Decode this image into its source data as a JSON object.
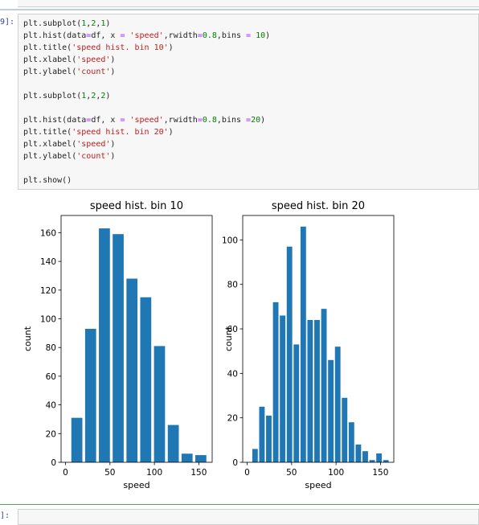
{
  "cell": {
    "prompt": "9]:",
    "next_prompt": "]:"
  },
  "code": [
    [
      {
        "t": "plt.subplot(",
        "c": ""
      },
      {
        "t": "1",
        "c": "num"
      },
      {
        "t": ",",
        "c": ""
      },
      {
        "t": "2",
        "c": "num"
      },
      {
        "t": ",",
        "c": ""
      },
      {
        "t": "1",
        "c": "num"
      },
      {
        "t": ")",
        "c": ""
      }
    ],
    [
      {
        "t": "plt.hist(data",
        "c": ""
      },
      {
        "t": "=",
        "c": "op"
      },
      {
        "t": "df, x ",
        "c": ""
      },
      {
        "t": "=",
        "c": "op"
      },
      {
        "t": " ",
        "c": ""
      },
      {
        "t": "'speed'",
        "c": "str"
      },
      {
        "t": ",rwidth",
        "c": ""
      },
      {
        "t": "=",
        "c": "op"
      },
      {
        "t": "0.8",
        "c": "num"
      },
      {
        "t": ",bins ",
        "c": ""
      },
      {
        "t": "=",
        "c": "op"
      },
      {
        "t": " ",
        "c": ""
      },
      {
        "t": "10",
        "c": "num"
      },
      {
        "t": ")",
        "c": ""
      }
    ],
    [
      {
        "t": "plt.title(",
        "c": ""
      },
      {
        "t": "'speed hist. bin 10'",
        "c": "str"
      },
      {
        "t": ")",
        "c": ""
      }
    ],
    [
      {
        "t": "plt.xlabel(",
        "c": ""
      },
      {
        "t": "'speed'",
        "c": "str"
      },
      {
        "t": ")",
        "c": ""
      }
    ],
    [
      {
        "t": "plt.ylabel(",
        "c": ""
      },
      {
        "t": "'count'",
        "c": "str"
      },
      {
        "t": ")",
        "c": ""
      }
    ],
    [],
    [
      {
        "t": "plt.subplot(",
        "c": ""
      },
      {
        "t": "1",
        "c": "num"
      },
      {
        "t": ",",
        "c": ""
      },
      {
        "t": "2",
        "c": "num"
      },
      {
        "t": ",",
        "c": ""
      },
      {
        "t": "2",
        "c": "num"
      },
      {
        "t": ")",
        "c": ""
      }
    ],
    [],
    [
      {
        "t": "plt.hist(data",
        "c": ""
      },
      {
        "t": "=",
        "c": "op"
      },
      {
        "t": "df, x ",
        "c": ""
      },
      {
        "t": "=",
        "c": "op"
      },
      {
        "t": " ",
        "c": ""
      },
      {
        "t": "'speed'",
        "c": "str"
      },
      {
        "t": ",rwidth",
        "c": ""
      },
      {
        "t": "=",
        "c": "op"
      },
      {
        "t": "0.8",
        "c": "num"
      },
      {
        "t": ",bins ",
        "c": ""
      },
      {
        "t": "=",
        "c": "op"
      },
      {
        "t": "20",
        "c": "num"
      },
      {
        "t": ")",
        "c": ""
      }
    ],
    [
      {
        "t": "plt.title(",
        "c": ""
      },
      {
        "t": "'speed hist. bin 20'",
        "c": "str"
      },
      {
        "t": ")",
        "c": ""
      }
    ],
    [
      {
        "t": "plt.xlabel(",
        "c": ""
      },
      {
        "t": "'speed'",
        "c": "str"
      },
      {
        "t": ")",
        "c": ""
      }
    ],
    [
      {
        "t": "plt.ylabel(",
        "c": ""
      },
      {
        "t": "'count'",
        "c": "str"
      },
      {
        "t": ")",
        "c": ""
      }
    ],
    [],
    [
      {
        "t": "plt.show()",
        "c": ""
      }
    ]
  ],
  "colors": {
    "bar": "#1f77b4"
  },
  "chart_data": [
    {
      "type": "bar",
      "title": "speed hist. bin 10",
      "xlabel": "speed",
      "ylabel": "count",
      "xlim": [
        -5,
        165
      ],
      "ylim": [
        0,
        172
      ],
      "xticks": [
        0,
        50,
        100,
        150
      ],
      "yticks": [
        0,
        20,
        40,
        60,
        80,
        100,
        120,
        140,
        160
      ],
      "bin_edges": [
        5,
        20.5,
        36,
        51.5,
        67,
        82.5,
        98,
        113.5,
        129,
        144.5,
        160
      ],
      "values": [
        31,
        93,
        163,
        159,
        128,
        115,
        81,
        26,
        6,
        5
      ]
    },
    {
      "type": "bar",
      "title": "speed hist. bin 20",
      "xlabel": "speed",
      "ylabel": "count",
      "xlim": [
        -5,
        165
      ],
      "ylim": [
        0,
        111
      ],
      "xticks": [
        0,
        50,
        100,
        150
      ],
      "yticks": [
        0,
        20,
        40,
        60,
        80,
        100
      ],
      "bin_edges": [
        5,
        12.75,
        20.5,
        28.25,
        36,
        43.75,
        51.5,
        59.25,
        67,
        74.75,
        82.5,
        90.25,
        98,
        105.75,
        113.5,
        121.25,
        129,
        136.75,
        144.5,
        152.25,
        160
      ],
      "values": [
        6,
        25,
        21,
        72,
        66,
        97,
        53,
        106,
        64,
        64,
        69,
        46,
        52,
        29,
        18,
        8,
        5,
        1,
        4,
        1
      ]
    }
  ]
}
